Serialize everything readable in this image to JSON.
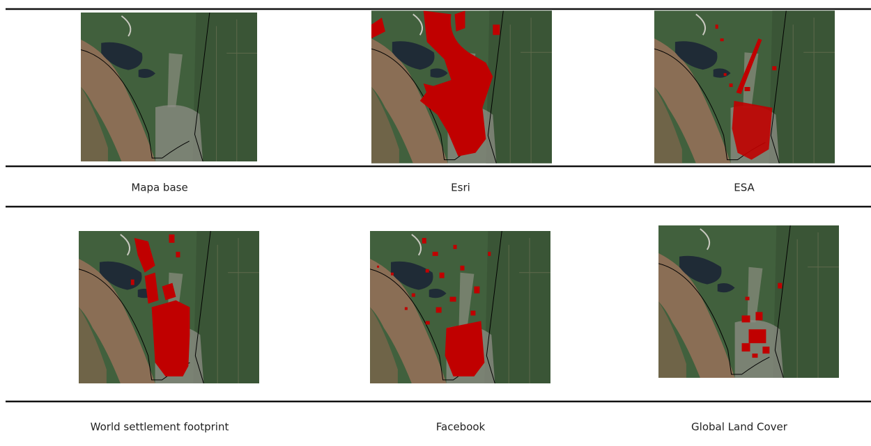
{
  "figures": [
    {
      "caption": "Mapa base"
    },
    {
      "caption": "Esri"
    },
    {
      "caption": "ESA"
    },
    {
      "caption": "World settlement footprint"
    },
    {
      "caption": "Facebook"
    },
    {
      "caption": "Global Land Cover"
    }
  ]
}
